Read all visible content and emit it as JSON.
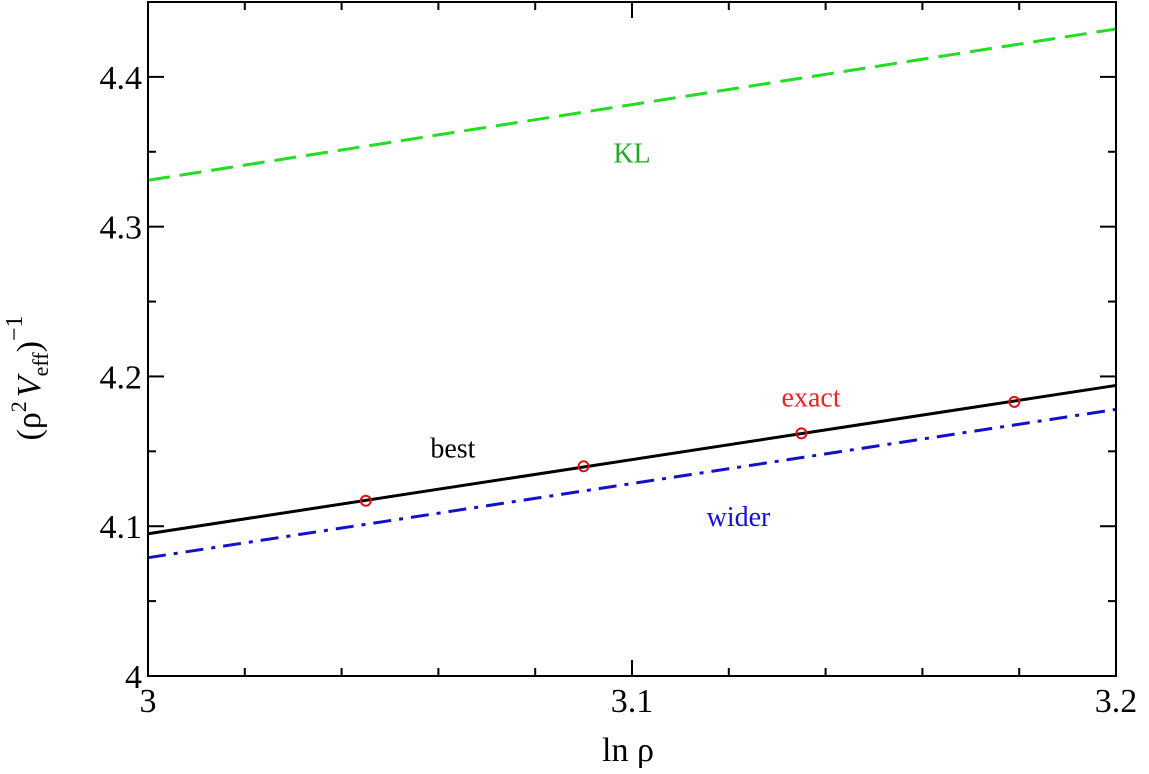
{
  "chart_data": {
    "type": "line",
    "xlabel": "ln ρ",
    "ylabel_parts": {
      "open": "(",
      "rho": "ρ",
      "sup2": "2",
      "v": "V",
      "sub": "eff",
      "close": ")",
      "supneg": "−1"
    },
    "xlim": [
      3.0,
      3.2
    ],
    "ylim": [
      4.0,
      4.45
    ],
    "x_ticks": [
      {
        "value": 3.0,
        "label": "3"
      },
      {
        "value": 3.1,
        "label": "3.1"
      },
      {
        "value": 3.2,
        "label": "3.2"
      }
    ],
    "y_ticks": [
      {
        "value": 4.0,
        "label": "4"
      },
      {
        "value": 4.1,
        "label": "4.1"
      },
      {
        "value": 4.2,
        "label": "4.2"
      },
      {
        "value": 4.3,
        "label": "4.3"
      },
      {
        "value": 4.4,
        "label": "4.4"
      }
    ],
    "x_minor_step": 0.02,
    "y_minor_step": 0.05,
    "grid": false,
    "series": [
      {
        "name": "KL",
        "style": "dashed",
        "color": "#22dd22",
        "label_color": "#22aa22",
        "x": [
          3.0,
          3.2
        ],
        "y": [
          4.331,
          4.432
        ],
        "label_at": [
          3.1,
          4.343
        ]
      },
      {
        "name": "best",
        "style": "solid",
        "color": "#000000",
        "label_color": "#000000",
        "x": [
          3.0,
          3.2
        ],
        "y": [
          4.095,
          4.194
        ],
        "label_at": [
          3.063,
          4.146
        ]
      },
      {
        "name": "wider",
        "style": "dashdot",
        "color": "#1111cc",
        "label_color": "#1111dd",
        "x": [
          3.0,
          3.2
        ],
        "y": [
          4.079,
          4.178
        ],
        "label_at": [
          3.122,
          4.1
        ]
      },
      {
        "name": "exact",
        "style": "markers",
        "color": "#dd1111",
        "label_color": "#ee2222",
        "x": [
          3.045,
          3.09,
          3.135,
          3.179
        ],
        "y": [
          4.117,
          4.14,
          4.162,
          4.183
        ],
        "label_at": [
          3.137,
          4.18
        ]
      }
    ]
  }
}
